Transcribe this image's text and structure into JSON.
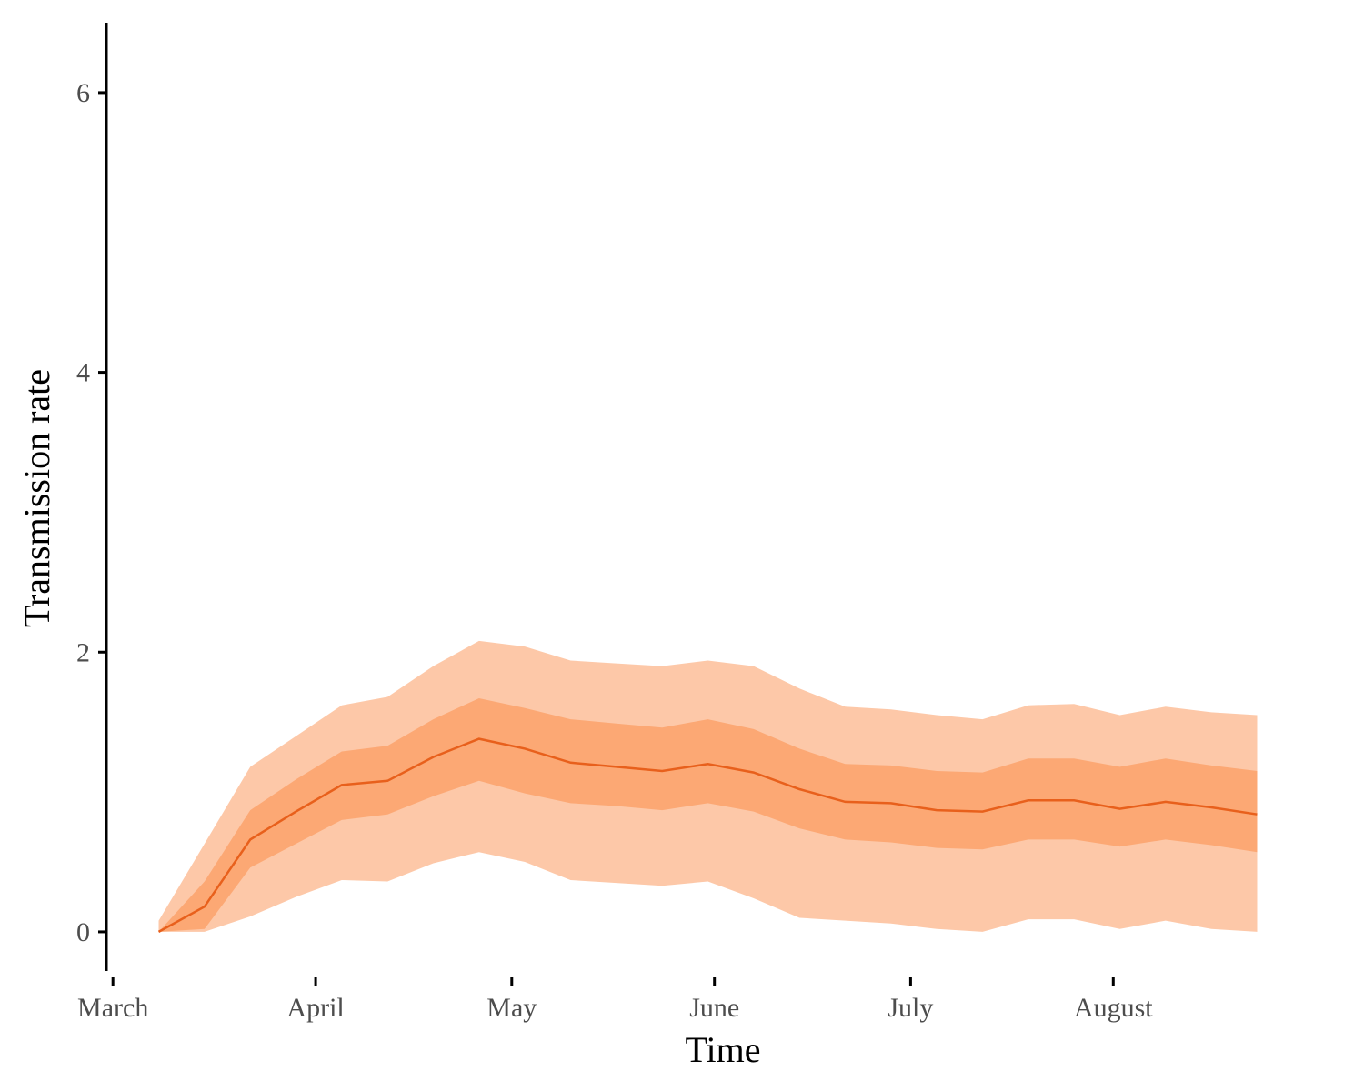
{
  "chart_data": {
    "type": "area",
    "xlabel": "Time",
    "ylabel": "Transmission rate",
    "x_ticks": [
      "March",
      "April",
      "May",
      "June",
      "July",
      "August"
    ],
    "y_ticks": [
      0,
      2,
      4,
      6
    ],
    "ylim": [
      -0.28,
      6.5
    ],
    "xlim": [
      "2020-02-29",
      "2020-08-31"
    ],
    "grid": false,
    "legend": "none",
    "colors": {
      "line": "#e8601c",
      "inner_band": "#fca874",
      "outer_band": "#fdc8a8",
      "axis": "#000000"
    },
    "series": [
      {
        "x": [
          "2020-03-08",
          "2020-03-15",
          "2020-03-22",
          "2020-03-29",
          "2020-04-05",
          "2020-04-12",
          "2020-04-19",
          "2020-04-26",
          "2020-05-03",
          "2020-05-10",
          "2020-05-17",
          "2020-05-24",
          "2020-05-31",
          "2020-06-07",
          "2020-06-14",
          "2020-06-21",
          "2020-06-28",
          "2020-07-05",
          "2020-07-12",
          "2020-07-19",
          "2020-07-26",
          "2020-08-02",
          "2020-08-09",
          "2020-08-16",
          "2020-08-23"
        ],
        "median": [
          0.0,
          0.18,
          0.66,
          0.86,
          1.05,
          1.08,
          1.25,
          1.38,
          1.31,
          1.21,
          1.18,
          1.15,
          1.2,
          1.14,
          1.02,
          0.93,
          0.92,
          0.87,
          0.86,
          0.94,
          0.94,
          0.88,
          0.93,
          0.89,
          0.84
        ],
        "inner_lower": [
          0.0,
          0.02,
          0.46,
          0.63,
          0.8,
          0.84,
          0.97,
          1.08,
          0.99,
          0.92,
          0.9,
          0.87,
          0.92,
          0.86,
          0.74,
          0.66,
          0.64,
          0.6,
          0.59,
          0.66,
          0.66,
          0.61,
          0.66,
          0.62,
          0.57
        ],
        "inner_upper": [
          0.0,
          0.36,
          0.87,
          1.09,
          1.29,
          1.33,
          1.52,
          1.67,
          1.6,
          1.52,
          1.49,
          1.46,
          1.52,
          1.45,
          1.31,
          1.2,
          1.19,
          1.15,
          1.14,
          1.24,
          1.24,
          1.18,
          1.24,
          1.19,
          1.15
        ],
        "outer_lower": [
          0.0,
          0.0,
          0.11,
          0.25,
          0.37,
          0.36,
          0.49,
          0.57,
          0.5,
          0.37,
          0.35,
          0.33,
          0.36,
          0.24,
          0.1,
          0.08,
          0.06,
          0.02,
          0.0,
          0.09,
          0.09,
          0.02,
          0.08,
          0.02,
          0.0
        ],
        "outer_upper": [
          0.08,
          0.63,
          1.18,
          1.4,
          1.62,
          1.68,
          1.9,
          2.08,
          2.04,
          1.94,
          1.92,
          1.9,
          1.94,
          1.9,
          1.74,
          1.61,
          1.59,
          1.55,
          1.52,
          1.62,
          1.63,
          1.55,
          1.61,
          1.57,
          1.55
        ]
      }
    ]
  }
}
